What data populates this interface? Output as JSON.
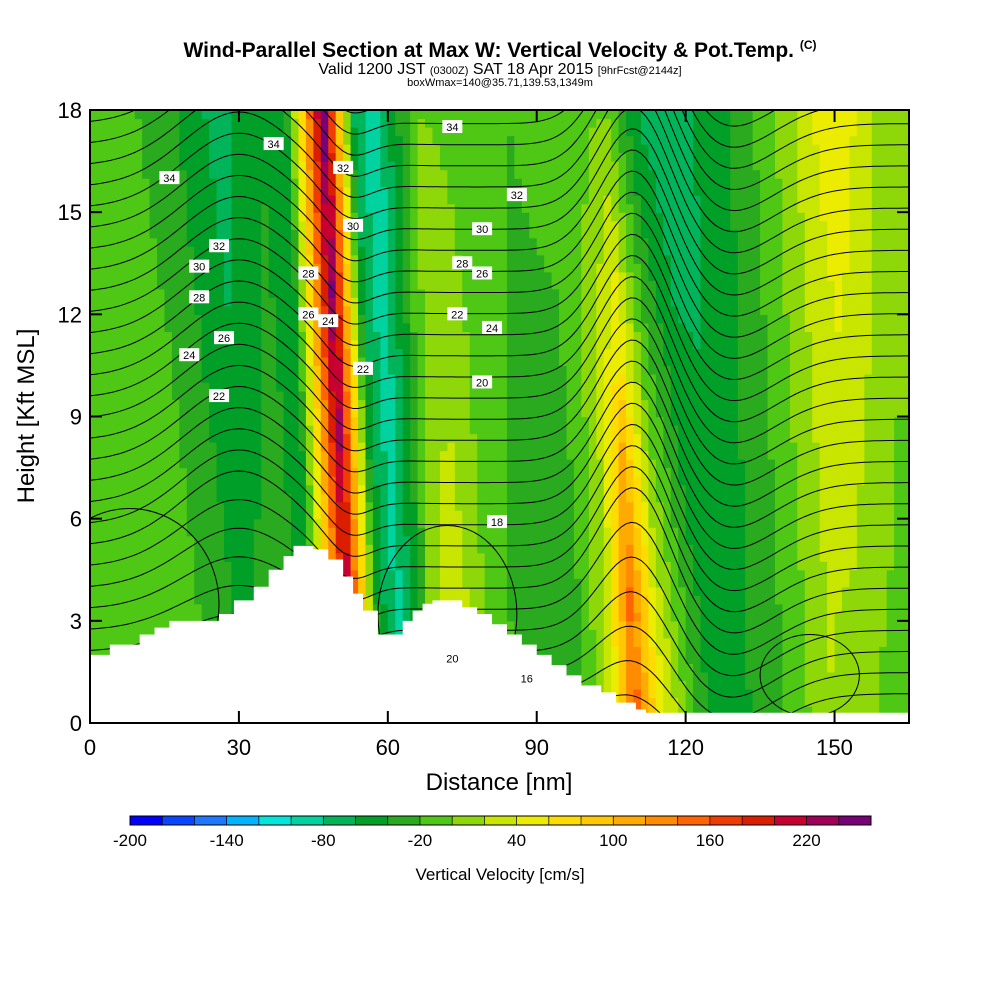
{
  "title": {
    "main": "Wind-Parallel Section at Max W: Vertical Velocity & Pot.Temp.",
    "mark": "(C)",
    "valid_prefix": "Valid 1200 JST",
    "valid_utc": "(0300Z)",
    "valid_date": "SAT 18 Apr 2015",
    "forecast": "[9hrFcst@2144z]",
    "box": "boxWmax=140@35.71,139.53,1349m"
  },
  "colors": {
    "palette": [
      "#0000ff",
      "#0a46ff",
      "#1e78ff",
      "#00b4ff",
      "#00e6dc",
      "#00d2a0",
      "#00b45a",
      "#00a028",
      "#2aaa1e",
      "#4ec814",
      "#8ed80a",
      "#c8e600",
      "#ecec00",
      "#ffdc00",
      "#ffc800",
      "#ffaa00",
      "#ff8c00",
      "#ff6400",
      "#f03c00",
      "#dc1e00",
      "#c80032",
      "#a0005a",
      "#780078"
    ],
    "contour": "#000000",
    "terrain": "#ffffff"
  },
  "chart_data": {
    "type": "heatmap",
    "xlabel": "Distance [nm]",
    "ylabel": "Height [Kft MSL]",
    "xlim": [
      0,
      165
    ],
    "ylim": [
      0,
      18
    ],
    "xticks": [
      "0",
      "30",
      "60",
      "90",
      "120",
      "150"
    ],
    "yticks": [
      "0",
      "3",
      "6",
      "9",
      "12",
      "15",
      "18"
    ],
    "colorbar": {
      "label": "Vertical Velocity [cm/s]",
      "min": -200,
      "max": 240,
      "step": 20,
      "tick_labels": [
        "-200",
        "-140",
        "-80",
        "-20",
        "40",
        "100",
        "160",
        "220"
      ]
    },
    "terrain": {
      "distance": [
        0,
        4,
        10,
        13,
        16,
        26,
        29,
        33,
        36,
        39,
        41,
        43,
        45,
        48,
        51,
        53,
        55,
        58,
        61,
        63,
        65,
        67,
        69,
        72,
        75,
        78,
        81,
        84,
        87,
        90,
        93,
        96,
        99,
        103,
        106,
        110,
        112
      ],
      "height": [
        2.0,
        2.3,
        2.6,
        2.8,
        3.0,
        3.2,
        3.6,
        4.0,
        4.5,
        4.9,
        5.2,
        5.2,
        5.1,
        4.8,
        4.3,
        3.8,
        3.3,
        2.6,
        2.6,
        3.0,
        3.3,
        3.5,
        3.6,
        3.6,
        3.4,
        3.2,
        2.9,
        2.6,
        2.3,
        2.0,
        1.7,
        1.4,
        1.1,
        0.9,
        0.6,
        0.4,
        0.3
      ]
    },
    "w_field": {
      "units": "cm/s",
      "base": [
        [
          0,
          -22
        ],
        [
          10,
          0
        ],
        [
          20,
          -8
        ],
        [
          32,
          -40
        ],
        [
          40,
          -22
        ],
        [
          45,
          -52
        ],
        [
          53,
          210
        ],
        [
          59,
          -40
        ],
        [
          63,
          -85
        ],
        [
          68,
          -30
        ],
        [
          70,
          20
        ],
        [
          75,
          42
        ],
        [
          82,
          -10
        ],
        [
          88,
          -28
        ],
        [
          98,
          -40
        ],
        [
          105,
          30
        ],
        [
          110,
          160
        ],
        [
          115,
          55
        ],
        [
          122,
          -20
        ],
        [
          126,
          -50
        ],
        [
          133,
          -40
        ],
        [
          140,
          -20
        ],
        [
          150,
          20
        ],
        [
          160,
          -5
        ],
        [
          165,
          -10
        ]
      ],
      "upper": [
        [
          0,
          -20
        ],
        [
          10,
          -10
        ],
        [
          20,
          -28
        ],
        [
          32,
          -70
        ],
        [
          40,
          -42
        ],
        [
          45,
          -60
        ],
        [
          53,
          240
        ],
        [
          59,
          -60
        ],
        [
          63,
          -100
        ],
        [
          68,
          -40
        ],
        [
          72,
          0
        ],
        [
          80,
          -5
        ],
        [
          90,
          -20
        ],
        [
          100,
          -10
        ],
        [
          110,
          0
        ],
        [
          116,
          -60
        ],
        [
          122,
          -80
        ],
        [
          128,
          -60
        ],
        [
          135,
          -40
        ],
        [
          142,
          -10
        ],
        [
          150,
          30
        ],
        [
          155,
          60
        ],
        [
          160,
          40
        ],
        [
          165,
          10
        ]
      ]
    },
    "theta_contours": {
      "units": "deg C",
      "labeled_values": [
        "16",
        "18",
        "20",
        "22",
        "24",
        "26",
        "28",
        "30",
        "32",
        "34"
      ],
      "label_positions": [
        {
          "text": "34",
          "x": 16,
          "y": 16.0
        },
        {
          "text": "32",
          "x": 26,
          "y": 14.0
        },
        {
          "text": "30",
          "x": 22,
          "y": 13.4
        },
        {
          "text": "28",
          "x": 22,
          "y": 12.5
        },
        {
          "text": "26",
          "x": 27,
          "y": 11.3
        },
        {
          "text": "24",
          "x": 20,
          "y": 10.8
        },
        {
          "text": "22",
          "x": 26,
          "y": 9.6
        },
        {
          "text": "34",
          "x": 37,
          "y": 17.0
        },
        {
          "text": "32",
          "x": 51,
          "y": 16.3
        },
        {
          "text": "30",
          "x": 53,
          "y": 14.6
        },
        {
          "text": "28",
          "x": 44,
          "y": 13.2
        },
        {
          "text": "26",
          "x": 44,
          "y": 12.0
        },
        {
          "text": "24",
          "x": 48,
          "y": 11.8
        },
        {
          "text": "22",
          "x": 55,
          "y": 10.4
        },
        {
          "text": "34",
          "x": 73,
          "y": 17.5
        },
        {
          "text": "32",
          "x": 86,
          "y": 15.5
        },
        {
          "text": "30",
          "x": 79,
          "y": 14.5
        },
        {
          "text": "28",
          "x": 75,
          "y": 13.5
        },
        {
          "text": "26",
          "x": 79,
          "y": 13.2
        },
        {
          "text": "24",
          "x": 81,
          "y": 11.6
        },
        {
          "text": "22",
          "x": 74,
          "y": 12.0
        },
        {
          "text": "20",
          "x": 79,
          "y": 10.0
        },
        {
          "text": "18",
          "x": 82,
          "y": 5.9
        },
        {
          "text": "20",
          "x": 73,
          "y": 1.9
        },
        {
          "text": "16",
          "x": 88,
          "y": 1.3
        }
      ]
    }
  }
}
